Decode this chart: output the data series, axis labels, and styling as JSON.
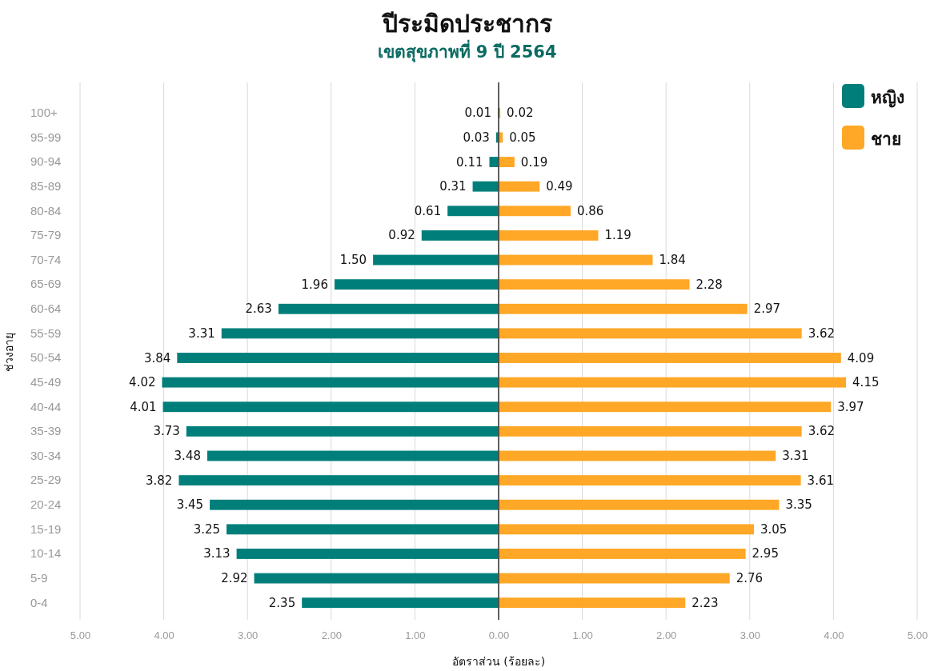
{
  "chart_data": [
    {
      "type": "bar",
      "orientation": "horizontal",
      "title": "ปีระมิดประชากร",
      "subtitle": "เขตสุขภาพที่ 9  ปี 2564",
      "xlabel": "อัตราส่วน (ร้อยละ)",
      "ylabel": "ช่วงอายุ",
      "categories": [
        "100+",
        "95-99",
        "90-94",
        "85-89",
        "80-84",
        "75-79",
        "70-74",
        "65-69",
        "60-64",
        "55-59",
        "50-54",
        "45-49",
        "40-44",
        "35-39",
        "30-34",
        "25-29",
        "20-24",
        "15-19",
        "10-14",
        "5-9",
        "0-4"
      ],
      "series": [
        {
          "name": "หญิง",
          "color": "#007f7a",
          "values": [
            0.01,
            0.03,
            0.11,
            0.31,
            0.61,
            0.92,
            1.5,
            1.96,
            2.63,
            3.31,
            3.84,
            4.02,
            4.01,
            3.73,
            3.48,
            3.82,
            3.45,
            3.25,
            3.13,
            2.92,
            2.35
          ],
          "value_labels": [
            "0.01",
            "0.03",
            "0.11",
            "0.31",
            "0.61",
            "0.92",
            "1.50",
            "1.96",
            "2.63",
            "3.31",
            "3.84",
            "4.02",
            "4.01",
            "3.73",
            "3.48",
            "3.82",
            "3.45",
            "3.25",
            "3.13",
            "2.92",
            "2.35"
          ]
        }
      ],
      "xlim": [
        5,
        0
      ],
      "xticks": [
        {
          "value": 5,
          "label": "5.00"
        },
        {
          "value": 4,
          "label": "4.00"
        },
        {
          "value": 3,
          "label": "3.00"
        },
        {
          "value": 2,
          "label": "2.00"
        },
        {
          "value": 1,
          "label": "1.00"
        }
      ],
      "grid": "x",
      "legend": "top right"
    },
    {
      "type": "bar",
      "orientation": "horizontal",
      "categories": [
        null,
        null,
        null,
        null,
        null,
        null,
        null,
        null,
        null,
        null,
        null,
        null,
        null,
        null,
        null,
        null,
        null,
        null,
        null,
        null,
        null
      ],
      "series": [
        {
          "name": "ชาย",
          "color": "#ffa726",
          "values": [
            0.02,
            0.05,
            0.19,
            0.49,
            0.86,
            1.19,
            1.84,
            2.28,
            2.97,
            3.62,
            4.09,
            4.15,
            3.97,
            3.62,
            3.31,
            3.61,
            3.35,
            3.05,
            2.95,
            2.76,
            2.23
          ],
          "value_labels": [
            "0.02",
            "0.05",
            "0.19",
            "0.49",
            "0.86",
            "1.19",
            "1.84",
            "2.28",
            "2.97",
            "3.62",
            "4.09",
            "4.15",
            "3.97",
            "3.62",
            "3.31",
            "3.61",
            "3.35",
            "3.05",
            "2.95",
            "2.76",
            "2.23"
          ]
        }
      ],
      "xlim": [
        0,
        5
      ],
      "xticks": [
        {
          "value": 0,
          "label": "0.00"
        },
        {
          "value": 1,
          "label": "1.00"
        },
        {
          "value": 2,
          "label": "2.00"
        },
        {
          "value": 3,
          "label": "3.00"
        },
        {
          "value": 4,
          "label": "4.00"
        },
        {
          "value": 5,
          "label": "5.00"
        }
      ],
      "grid": "x",
      "legend": "top right",
      "tick_labels": "x"
    }
  ]
}
